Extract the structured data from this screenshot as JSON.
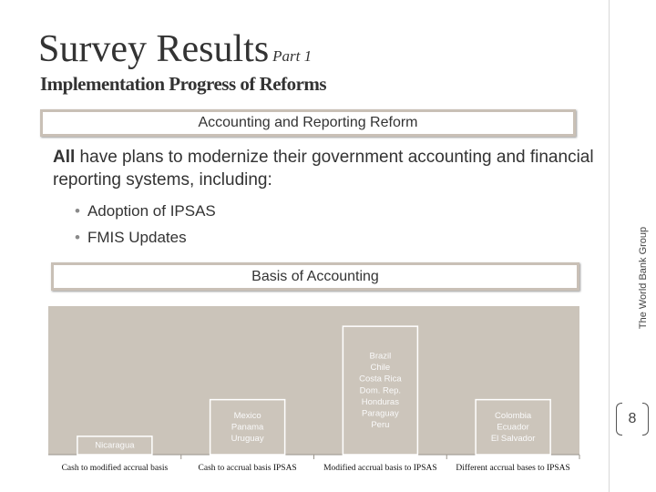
{
  "header": {
    "title": "Survey Results",
    "title_part": "Part 1",
    "subtitle": "Implementation Progress of Reforms"
  },
  "sidebar": {
    "organization": "The World Bank Group",
    "page_number": "8"
  },
  "section1": {
    "heading": "Accounting and Reporting Reform",
    "statement_bold": "All",
    "statement_rest": " have plans to modernize their government accounting and financial reporting systems, including:",
    "bullets": [
      "Adoption of IPSAS",
      "FMIS Updates"
    ]
  },
  "section2": {
    "heading": "Basis of Accounting"
  },
  "colors": {
    "plot_background": "#cbc4ba",
    "bar_fill": "#ccc5bb",
    "bar_outline": "#ffffff",
    "box_border": "#c9c0b6"
  },
  "chart_data": {
    "type": "bar",
    "title": "Basis of Accounting",
    "categories": [
      "Cash to modified accrual basis",
      "Cash to accrual basis IPSAS",
      "Modified accrual basis to IPSAS",
      "Different accrual bases to IPSAS"
    ],
    "values": [
      1,
      3,
      7,
      3
    ],
    "bar_labels": [
      [
        "Nicaragua"
      ],
      [
        "Mexico",
        "Panama",
        "Uruguay"
      ],
      [
        "Brazil",
        "Chile",
        "Costa Rica",
        "Dom. Rep.",
        "Honduras",
        "Paraguay",
        "Peru"
      ],
      [
        "Colombia",
        "Ecuador",
        "El Salvador"
      ]
    ],
    "ylim": [
      0,
      8.1
    ],
    "grid": false,
    "legend": "none",
    "xlabel": "",
    "ylabel": ""
  }
}
